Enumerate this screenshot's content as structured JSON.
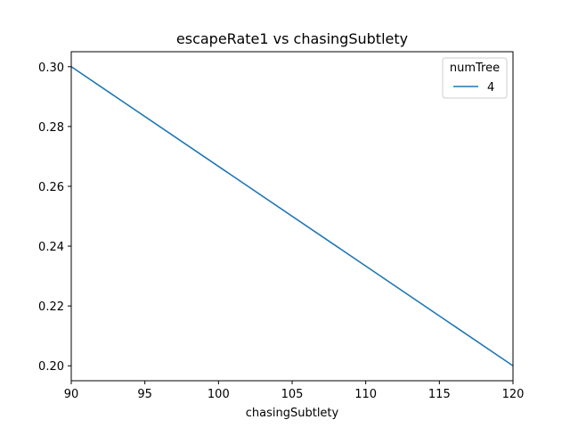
{
  "chart_data": {
    "type": "line",
    "title": "escapeRate1 vs chasingSubtlety",
    "xlabel": "chasingSubtlety",
    "ylabel": "",
    "xlim": [
      90,
      120
    ],
    "ylim": [
      0.195,
      0.305
    ],
    "xticks": [
      90,
      95,
      100,
      105,
      110,
      115,
      120
    ],
    "yticks": [
      0.2,
      0.22,
      0.24,
      0.26,
      0.28,
      0.3
    ],
    "xtick_labels": [
      "90",
      "95",
      "100",
      "105",
      "110",
      "115",
      "120"
    ],
    "ytick_labels": [
      "0.20",
      "0.22",
      "0.24",
      "0.26",
      "0.28",
      "0.30"
    ],
    "grid": false,
    "legend": {
      "title": "numTree",
      "placement": "top-right"
    },
    "series": [
      {
        "name": "4",
        "color": "#1f77b4",
        "x": [
          90,
          120
        ],
        "y": [
          0.3,
          0.2
        ]
      }
    ]
  }
}
